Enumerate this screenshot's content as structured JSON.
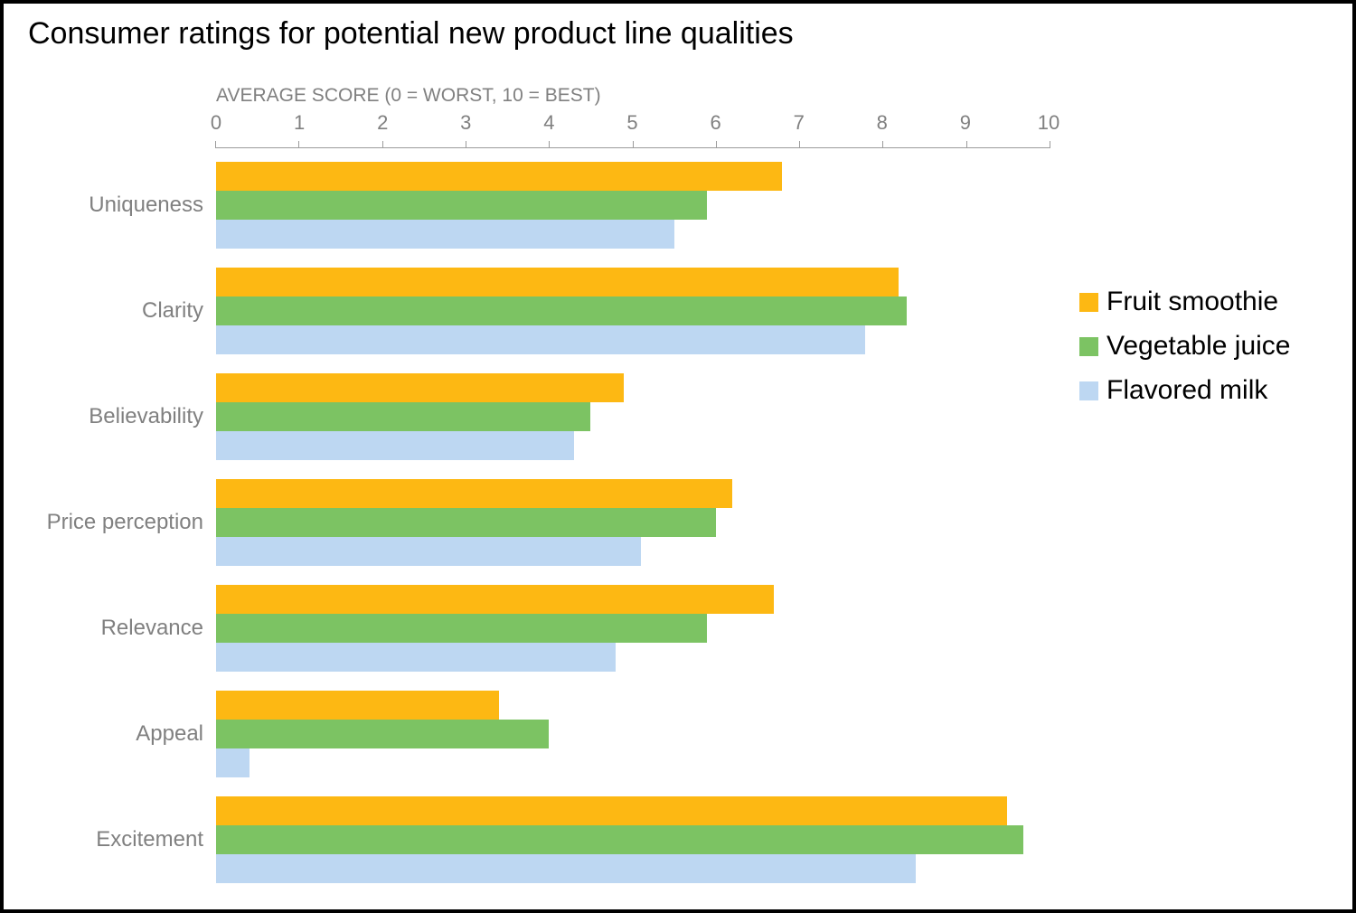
{
  "title": "Consumer ratings for potential new product line qualities",
  "chart_data": {
    "type": "bar",
    "orientation": "horizontal",
    "title": "Consumer ratings for potential new product line qualities",
    "axis_title": "AVERAGE SCORE (0 = WORST, 10 = BEST)",
    "xlim": [
      0,
      10
    ],
    "ticks": [
      0,
      1,
      2,
      3,
      4,
      5,
      6,
      7,
      8,
      9,
      10
    ],
    "grid": false,
    "legend_position": "right",
    "categories": [
      "Uniqueness",
      "Clarity",
      "Believability",
      "Price perception",
      "Relevance",
      "Appeal",
      "Excitement"
    ],
    "series": [
      {
        "name": "Fruit smoothie",
        "color": "#FDB813",
        "values": [
          6.8,
          8.2,
          4.9,
          6.2,
          6.7,
          3.4,
          9.5
        ]
      },
      {
        "name": "Vegetable juice",
        "color": "#7CC363",
        "values": [
          5.9,
          8.3,
          4.5,
          6.0,
          5.9,
          4.0,
          9.7
        ]
      },
      {
        "name": "Flavored milk",
        "color": "#BDD7F2",
        "values": [
          5.5,
          7.8,
          4.3,
          5.1,
          4.8,
          0.4,
          8.4
        ]
      }
    ]
  }
}
